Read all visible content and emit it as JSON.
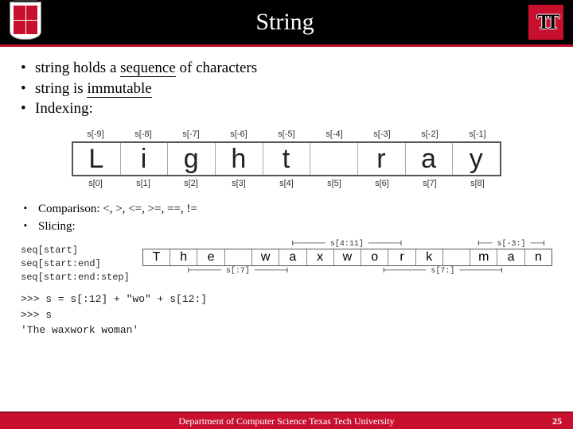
{
  "title": "String",
  "bullets": {
    "b1a": "string holds a ",
    "b1u": "sequence",
    "b1b": " of characters",
    "b2a": "string is ",
    "b2u": "immutable",
    "b3": "Indexing:"
  },
  "idx": {
    "neg": [
      "s[-9]",
      "s[-8]",
      "s[-7]",
      "s[-6]",
      "s[-5]",
      "s[-4]",
      "s[-3]",
      "s[-2]",
      "s[-1]"
    ],
    "chars": [
      "L",
      "i",
      "g",
      "h",
      "t",
      " ",
      "r",
      "a",
      "y"
    ],
    "pos": [
      "s[0]",
      "s[1]",
      "s[2]",
      "s[3]",
      "s[4]",
      "s[5]",
      "s[6]",
      "s[7]",
      "s[8]"
    ]
  },
  "sub": {
    "cmp": "Comparison: <, >, <=, >=, ==, !=",
    "slc": "Slicing:"
  },
  "slice": {
    "l1": "seq[start]",
    "l2": "seq[start:end]",
    "l3": "seq[start:end:step]",
    "top_a": "s[4:11]",
    "top_b": "s[-3:]",
    "chars": [
      "T",
      "h",
      "e",
      " ",
      "w",
      "a",
      "x",
      "w",
      "o",
      "r",
      "k",
      " ",
      "m",
      "a",
      "n"
    ],
    "bot_a": "s[:7]",
    "bot_b": "s[7:]"
  },
  "repl": {
    "l1": ">>> s = s[:12] + \"wo\" + s[12:]",
    "l2": ">>> s",
    "l3": "'The waxwork woman'"
  },
  "footer": {
    "text": "Department of Computer Science Texas Tech University",
    "page": "25"
  }
}
